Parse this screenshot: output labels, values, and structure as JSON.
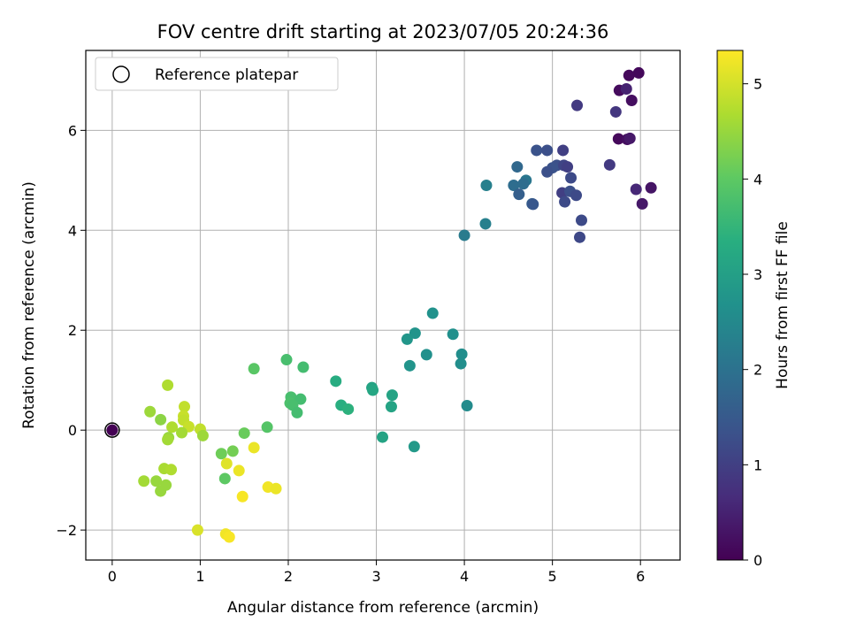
{
  "chart_data": {
    "type": "scatter",
    "title": "FOV centre drift starting at 2023/07/05 20:24:36",
    "xlabel": "Angular distance from reference (arcmin)",
    "ylabel": "Rotation from reference (arcmin)",
    "xlim": [
      -0.3,
      6.45
    ],
    "ylim": [
      -2.6,
      7.6
    ],
    "xticks": [
      0,
      1,
      2,
      3,
      4,
      5,
      6
    ],
    "yticks": [
      -2,
      0,
      2,
      4,
      6
    ],
    "grid": true,
    "legend": {
      "position": "top-left",
      "entries": [
        "Reference platepar"
      ]
    },
    "colorbar": {
      "label": "Hours from first FF file",
      "range": [
        0,
        5.35
      ],
      "ticks": [
        0,
        1,
        2,
        3,
        4,
        5
      ],
      "colormap": "viridis"
    },
    "reference_point": {
      "x": 0,
      "y": 0,
      "hours": 0
    },
    "points": [
      {
        "x": 5.98,
        "y": 7.15,
        "h": 0.1
      },
      {
        "x": 5.87,
        "y": 7.1,
        "h": 0.12
      },
      {
        "x": 5.76,
        "y": 6.8,
        "h": 0.15
      },
      {
        "x": 5.84,
        "y": 6.83,
        "h": 0.5
      },
      {
        "x": 5.9,
        "y": 6.6,
        "h": 0.2
      },
      {
        "x": 5.28,
        "y": 6.5,
        "h": 0.9
      },
      {
        "x": 5.72,
        "y": 6.37,
        "h": 0.85
      },
      {
        "x": 5.75,
        "y": 5.83,
        "h": 0.12
      },
      {
        "x": 5.85,
        "y": 5.82,
        "h": 0.2
      },
      {
        "x": 5.88,
        "y": 5.84,
        "h": 0.35
      },
      {
        "x": 4.82,
        "y": 5.6,
        "h": 1.35
      },
      {
        "x": 4.94,
        "y": 5.6,
        "h": 1.3
      },
      {
        "x": 5.12,
        "y": 5.6,
        "h": 1.0
      },
      {
        "x": 5.65,
        "y": 5.31,
        "h": 0.9
      },
      {
        "x": 5.05,
        "y": 5.3,
        "h": 1.3
      },
      {
        "x": 5.13,
        "y": 5.3,
        "h": 1.1
      },
      {
        "x": 5.0,
        "y": 5.25,
        "h": 1.35
      },
      {
        "x": 5.17,
        "y": 5.27,
        "h": 1.0
      },
      {
        "x": 4.6,
        "y": 5.27,
        "h": 1.8
      },
      {
        "x": 4.94,
        "y": 5.17,
        "h": 1.3
      },
      {
        "x": 5.21,
        "y": 5.05,
        "h": 1.2
      },
      {
        "x": 4.7,
        "y": 5.0,
        "h": 2.1
      },
      {
        "x": 4.67,
        "y": 4.93,
        "h": 1.9
      },
      {
        "x": 4.56,
        "y": 4.9,
        "h": 1.9
      },
      {
        "x": 4.25,
        "y": 4.9,
        "h": 2.3
      },
      {
        "x": 5.95,
        "y": 4.82,
        "h": 0.6
      },
      {
        "x": 6.12,
        "y": 4.85,
        "h": 0.3
      },
      {
        "x": 5.11,
        "y": 4.75,
        "h": 1.0
      },
      {
        "x": 5.2,
        "y": 4.78,
        "h": 1.3
      },
      {
        "x": 5.27,
        "y": 4.7,
        "h": 1.2
      },
      {
        "x": 4.62,
        "y": 4.72,
        "h": 1.6
      },
      {
        "x": 4.77,
        "y": 4.53,
        "h": 1.6
      },
      {
        "x": 4.78,
        "y": 4.52,
        "h": 1.45
      },
      {
        "x": 5.14,
        "y": 4.57,
        "h": 1.2
      },
      {
        "x": 6.02,
        "y": 4.53,
        "h": 0.35
      },
      {
        "x": 5.33,
        "y": 4.2,
        "h": 1.2
      },
      {
        "x": 4.24,
        "y": 4.13,
        "h": 2.3
      },
      {
        "x": 4.0,
        "y": 3.9,
        "h": 2.2
      },
      {
        "x": 5.31,
        "y": 3.86,
        "h": 1.15
      },
      {
        "x": 3.64,
        "y": 2.34,
        "h": 2.7
      },
      {
        "x": 3.44,
        "y": 1.94,
        "h": 2.75
      },
      {
        "x": 3.87,
        "y": 1.92,
        "h": 2.65
      },
      {
        "x": 3.35,
        "y": 1.82,
        "h": 2.8
      },
      {
        "x": 3.57,
        "y": 1.51,
        "h": 2.65
      },
      {
        "x": 3.97,
        "y": 1.52,
        "h": 2.6
      },
      {
        "x": 3.38,
        "y": 1.29,
        "h": 2.75
      },
      {
        "x": 3.96,
        "y": 1.33,
        "h": 2.6
      },
      {
        "x": 2.95,
        "y": 0.85,
        "h": 3.1
      },
      {
        "x": 2.96,
        "y": 0.8,
        "h": 3.15
      },
      {
        "x": 3.18,
        "y": 0.7,
        "h": 3.1
      },
      {
        "x": 2.54,
        "y": 0.98,
        "h": 3.3
      },
      {
        "x": 2.6,
        "y": 0.5,
        "h": 3.35
      },
      {
        "x": 2.68,
        "y": 0.42,
        "h": 3.4
      },
      {
        "x": 3.17,
        "y": 0.47,
        "h": 3.1
      },
      {
        "x": 4.03,
        "y": 0.49,
        "h": 2.55
      },
      {
        "x": 3.07,
        "y": -0.14,
        "h": 3.1
      },
      {
        "x": 3.43,
        "y": -0.33,
        "h": 2.85
      },
      {
        "x": 1.98,
        "y": 1.41,
        "h": 3.75
      },
      {
        "x": 2.17,
        "y": 1.26,
        "h": 3.7
      },
      {
        "x": 1.61,
        "y": 1.23,
        "h": 3.95
      },
      {
        "x": 2.03,
        "y": 0.66,
        "h": 3.75
      },
      {
        "x": 2.14,
        "y": 0.62,
        "h": 3.7
      },
      {
        "x": 2.02,
        "y": 0.54,
        "h": 3.8
      },
      {
        "x": 2.05,
        "y": 0.5,
        "h": 3.75
      },
      {
        "x": 2.1,
        "y": 0.35,
        "h": 3.7
      },
      {
        "x": 1.76,
        "y": 0.06,
        "h": 3.9
      },
      {
        "x": 1.5,
        "y": -0.06,
        "h": 4.1
      },
      {
        "x": 1.24,
        "y": -0.47,
        "h": 4.15
      },
      {
        "x": 1.37,
        "y": -0.42,
        "h": 4.2
      },
      {
        "x": 1.28,
        "y": -0.97,
        "h": 4.0
      },
      {
        "x": 1.3,
        "y": -0.67,
        "h": 5.1
      },
      {
        "x": 1.44,
        "y": -0.81,
        "h": 5.2
      },
      {
        "x": 1.61,
        "y": -0.35,
        "h": 5.2
      },
      {
        "x": 1.48,
        "y": -1.33,
        "h": 5.3
      },
      {
        "x": 1.77,
        "y": -1.14,
        "h": 5.25
      },
      {
        "x": 1.86,
        "y": -1.17,
        "h": 5.2
      },
      {
        "x": 0.97,
        "y": -2.0,
        "h": 5.05
      },
      {
        "x": 1.29,
        "y": -2.08,
        "h": 5.25
      },
      {
        "x": 1.33,
        "y": -2.14,
        "h": 5.3
      },
      {
        "x": 0.63,
        "y": 0.9,
        "h": 4.7
      },
      {
        "x": 0.43,
        "y": 0.37,
        "h": 4.55
      },
      {
        "x": 0.55,
        "y": 0.21,
        "h": 4.4
      },
      {
        "x": 0.82,
        "y": 0.47,
        "h": 4.85
      },
      {
        "x": 0.81,
        "y": 0.28,
        "h": 4.9
      },
      {
        "x": 0.81,
        "y": 0.2,
        "h": 4.85
      },
      {
        "x": 0.68,
        "y": 0.06,
        "h": 4.7
      },
      {
        "x": 0.87,
        "y": 0.07,
        "h": 4.9
      },
      {
        "x": 1.0,
        "y": 0.02,
        "h": 4.85
      },
      {
        "x": 0.79,
        "y": -0.05,
        "h": 4.6
      },
      {
        "x": 1.03,
        "y": -0.11,
        "h": 4.55
      },
      {
        "x": 0.64,
        "y": -0.15,
        "h": 4.5
      },
      {
        "x": 0.63,
        "y": -0.19,
        "h": 4.6
      },
      {
        "x": 0.59,
        "y": -0.77,
        "h": 4.65
      },
      {
        "x": 0.67,
        "y": -0.79,
        "h": 4.7
      },
      {
        "x": 0.36,
        "y": -1.02,
        "h": 4.6
      },
      {
        "x": 0.5,
        "y": -1.02,
        "h": 4.5
      },
      {
        "x": 0.61,
        "y": -1.1,
        "h": 4.5
      },
      {
        "x": 0.55,
        "y": -1.22,
        "h": 4.5
      }
    ]
  }
}
